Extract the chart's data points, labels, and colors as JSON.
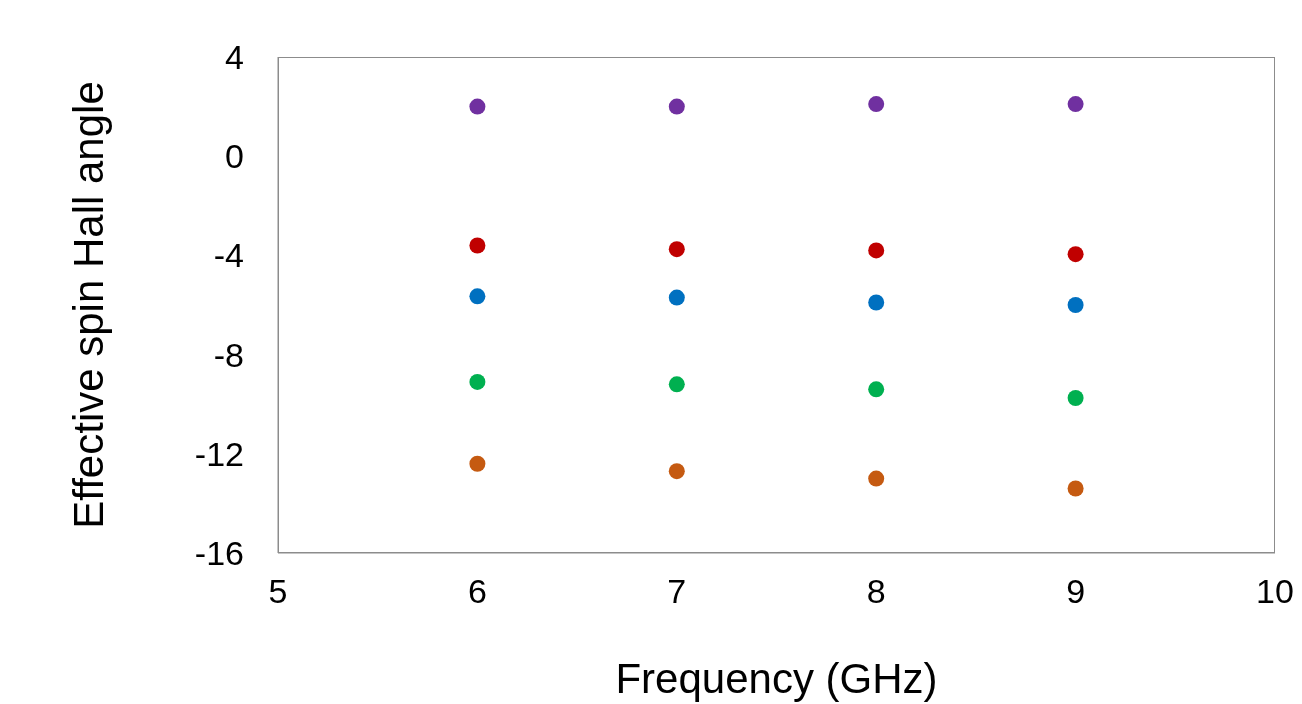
{
  "chart_data": {
    "type": "scatter",
    "xlabel": "Frequency (GHz)",
    "ylabel": "Effective spin Hall angle",
    "x": [
      6,
      7,
      8,
      9
    ],
    "series": [
      {
        "color": "#7030a0",
        "values": [
          2.0,
          2.0,
          2.1,
          2.1
        ]
      },
      {
        "color": "#c00000",
        "values": [
          -3.6,
          -3.75,
          -3.8,
          -3.95
        ]
      },
      {
        "color": "#0070c0",
        "values": [
          -5.65,
          -5.7,
          -5.9,
          -6.0
        ]
      },
      {
        "color": "#00b050",
        "values": [
          -9.1,
          -9.2,
          -9.4,
          -9.75
        ]
      },
      {
        "color": "#c55a11",
        "values": [
          -12.4,
          -12.7,
          -13.0,
          -13.4
        ]
      }
    ],
    "xlim": [
      5,
      10
    ],
    "xticks": [
      5,
      6,
      7,
      8,
      9,
      10
    ],
    "ylim": [
      -16,
      4
    ],
    "yticks": [
      -16,
      -12,
      -8,
      -4,
      0,
      4
    ],
    "grid": false,
    "legend": false,
    "marker": "circle"
  }
}
